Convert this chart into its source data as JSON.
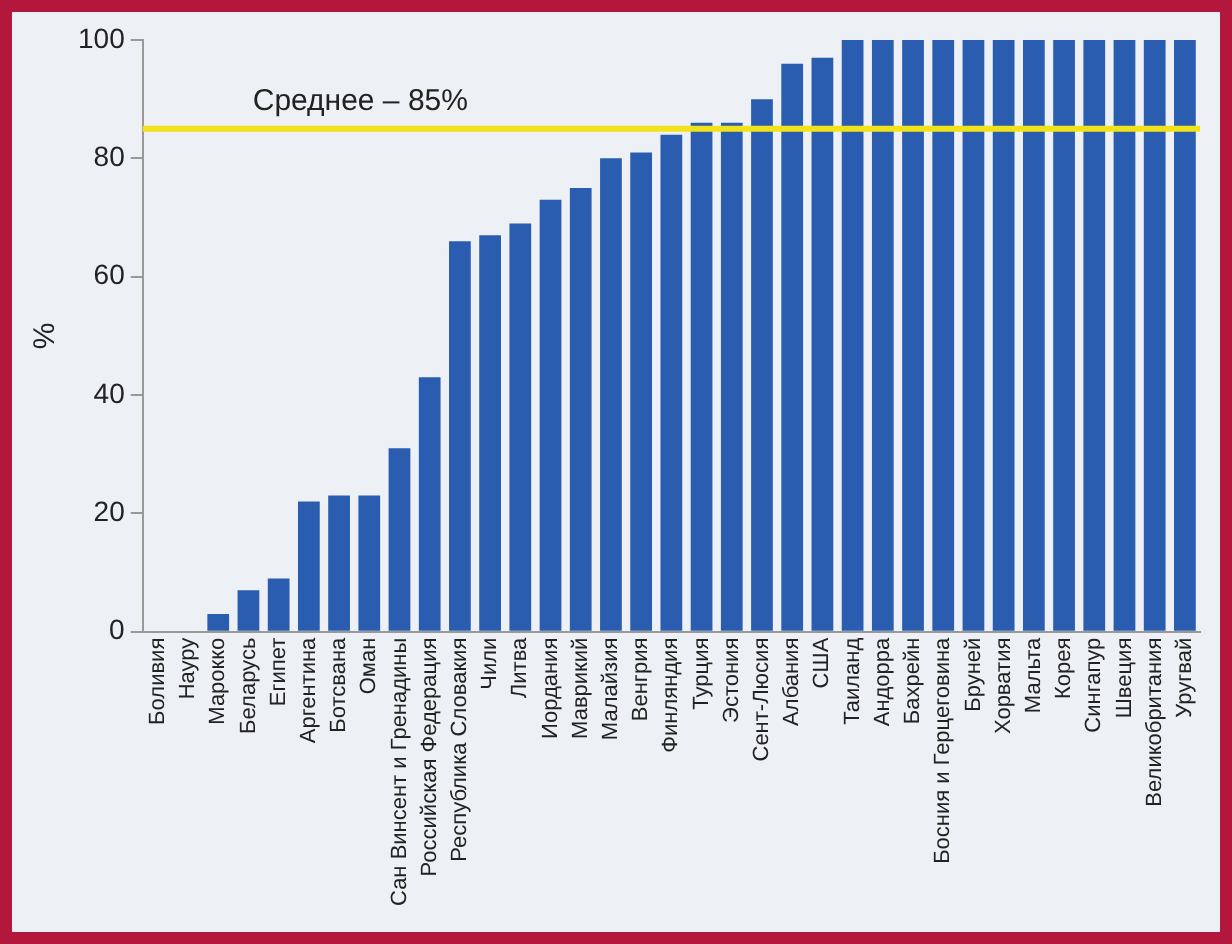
{
  "chart_data": {
    "type": "bar",
    "ylabel": "%",
    "categories": [
      "Боливия",
      "Науру",
      "Марокко",
      "Беларусь",
      "Египет",
      "Аргентина",
      "Ботсвана",
      "Оман",
      "Сан Винсент и Гренадины",
      "Российская Федерация",
      "Республика Словакия",
      "Чили",
      "Литва",
      "Иордания",
      "Маврикий",
      "Малайзия",
      "Венгрия",
      "Финляндия",
      "Турция",
      "Эстония",
      "Сент-Люсия",
      "Албания",
      "США",
      "Таиланд",
      "Андорра",
      "Бахрейн",
      "Босния и Герцеговина",
      "Бруней",
      "Хорватия",
      "Мальта",
      "Корея",
      "Сингапур",
      "Швеция",
      "Великобритания",
      "Уругвай"
    ],
    "values": [
      0,
      0,
      3,
      7,
      9,
      22,
      23,
      23,
      31,
      43,
      66,
      67,
      69,
      73,
      75,
      80,
      81,
      84,
      86,
      86,
      90,
      96,
      97,
      100,
      100,
      100,
      100,
      100,
      100,
      100,
      100,
      100,
      100,
      100,
      100
    ],
    "color": "#2a5db0",
    "ylim": [
      0,
      100
    ],
    "yticks": [
      0,
      20,
      40,
      60,
      80,
      100
    ],
    "grid": false,
    "legend": false,
    "ref_lines": [
      {
        "axis": "y",
        "value": 85,
        "label": "Среднее – 85%",
        "color": "#f2e21a"
      }
    ]
  }
}
